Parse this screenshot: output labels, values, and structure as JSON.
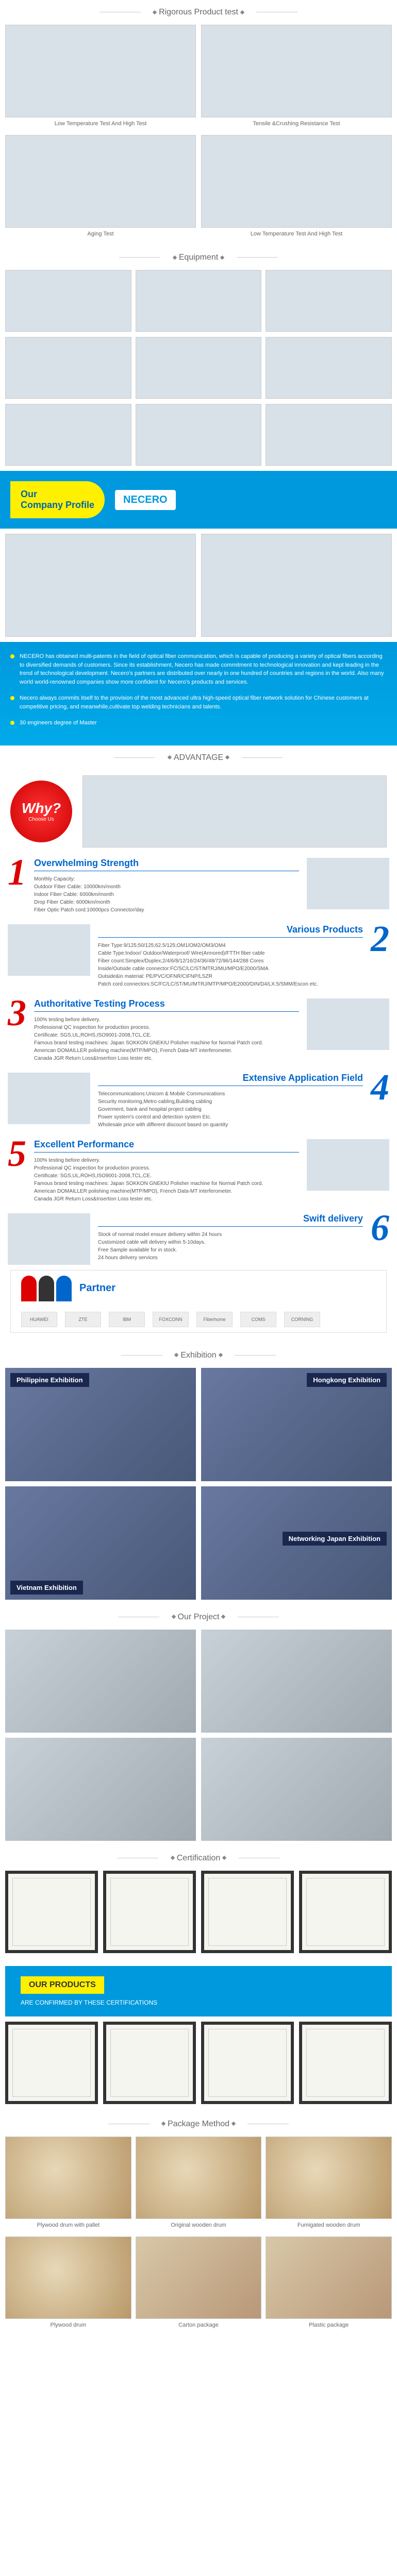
{
  "sections": {
    "product_test": "Rigorous Product test",
    "equipment": "Equipment",
    "advantage": "ADVANTAGE",
    "exhibition": "Exhibition",
    "our_project": "Our Project",
    "certification": "Certification",
    "package_method": "Package Method"
  },
  "product_test": {
    "items": [
      {
        "caption": "Low Temperature Test And High Test"
      },
      {
        "caption": "Tensile &Crushing Resistance Test"
      },
      {
        "caption": "Aging Test"
      },
      {
        "caption": "Low Temperature Test And High Test"
      }
    ]
  },
  "profile": {
    "badge_line1": "Our",
    "badge_line2": "Company Profile",
    "logo": "NECERO",
    "points": [
      "NECERO has obtained multi-patents in the field of optical fiber communication, which is capable of producing a variety of optical fibers according to diversified demands of customers. Since its establishment, Necero has made commitment to technological innovation and kept leading in the trend of technological development. Necero's partners are distributed over nearly in one hundred of countries and regions in the world. Also many world world-renowned companies show more confident for Necero's products and services.",
      "Necero always commits itself to the provision of the most advanced ultra high-speed optical fiber network solution for Chinese customers at competitive pricing, and meanwhile,cultivate top welding technicians and talents.",
      "30 engineers  degree of Master"
    ]
  },
  "why": {
    "big": "Why?",
    "small": "Choose Us"
  },
  "advantages": [
    {
      "num": "1",
      "color": "red",
      "title": "Overwhelming Strength",
      "lines": [
        "Monthly Capacity:",
        "Outdoor Fiber Cable: 10000km/month",
        "Indoor Fiber Cable: 6000km/month",
        "Drop Fiber Cable: 6000km/month",
        "Fiber Optic Patch cord:10000pcs Connector/day"
      ]
    },
    {
      "num": "2",
      "color": "blue",
      "title": "Various Products",
      "lines": [
        "Fiber Type:9/125;50/125;62.5/125;OM1/OM2/OM3/OM4",
        "Cable Type:Indoor/ Outdoor/Waterproof/ Wire(Armored)/FTTH fiber cable",
        "Fiber count:Simplex/Duplex;2/4/6/8/12/16/24/36/48/72/96/144/288 Cores",
        "Inside/Outside cable connector:FC/SC/LC/ST/MTRJ/MU/MPO/E2000/SMA",
        "Outside&in material: PE/PVC/OFNR/CIFNP/LSZR",
        "Patch cord connectors:SC/FC/LC/ST/MU/MTRJ/MTP/MPO/E2000/DIN/D4/LX.5/SMM/Escon etc."
      ]
    },
    {
      "num": "3",
      "color": "red",
      "title": "Authoritative Testing Process",
      "lines": [
        "100% testing before delivery.",
        "Professional QC inspection for production process.",
        "Certificate: SGS,UL,ROHS,ISO9001-2008,TCL,CE.",
        "Famous brand testing machines: Japan SOKKON GNEKIU Polisher machine for Normal Patch cord.",
        "American DOMAILLER polishing machine(MTP/MPO), French Data-MT interferometer.",
        "Canada JGR  Return Loss&Insertion Loss tester etc."
      ]
    },
    {
      "num": "4",
      "color": "blue",
      "title": "Extensive Application Field",
      "lines": [
        "Telecommunications:Unicom & Mobile Communications",
        "Security monitoring,Metro cabling,Building cabling",
        "Goverment, bank and hospital project cabling",
        "Power system's control and detection system Etc.",
        "Wholesale price with different discount based on quantity"
      ]
    },
    {
      "num": "5",
      "color": "red",
      "title": "Excellent Performance",
      "lines": [
        "100% testing before delivery.",
        "Professional QC inspection for production process.",
        "Certificate: SGS,UL,ROHS,ISO9001-2008,TCL,CE.",
        "Famous brand testing machines: Japan SOKKON GNEKIU Polisher machine for Normal Patch cord.",
        "American DOMAILLER polishing machine(MTP/MPO), French Data-MT interferometer.",
        "Canada JGR  Return Loss&Insertion Loss tester etc."
      ]
    },
    {
      "num": "6",
      "color": "blue",
      "title": "Swift delivery",
      "lines": [
        "Stock of normal model ensure delivery within 24 hours",
        "Customized cable will delivery within 5-10days.",
        "Free Sample available for in stock.",
        "24 hours delivery services"
      ]
    }
  ],
  "partner": {
    "title": "Partner",
    "logos": [
      "HUAWEI",
      "ZTE",
      "IBM",
      "FOXCONN",
      "Fiberhome",
      "COMS",
      "CORNING"
    ]
  },
  "exhibition": {
    "labels": [
      "Philippine Exhibition",
      "Hongkong Exhibition",
      "Vietnam Exhibition",
      "Networking Japan Exhibition"
    ]
  },
  "certification": {
    "banner_title": "OUR PRODUCTS",
    "banner_sub": "ARE CONFIRMED BY THESE CERTIFICATIONS"
  },
  "package": {
    "row1": [
      "Plywood drum with pallet",
      "Original wooden drum",
      "Fumigated wooden drum"
    ],
    "row2": [
      "Plywood drum",
      "Carton package",
      "Plastic package"
    ]
  },
  "colors": {
    "primary_blue": "#0099dd",
    "accent_yellow": "#fff000",
    "red": "#dd0000",
    "text_blue": "#0066cc"
  }
}
